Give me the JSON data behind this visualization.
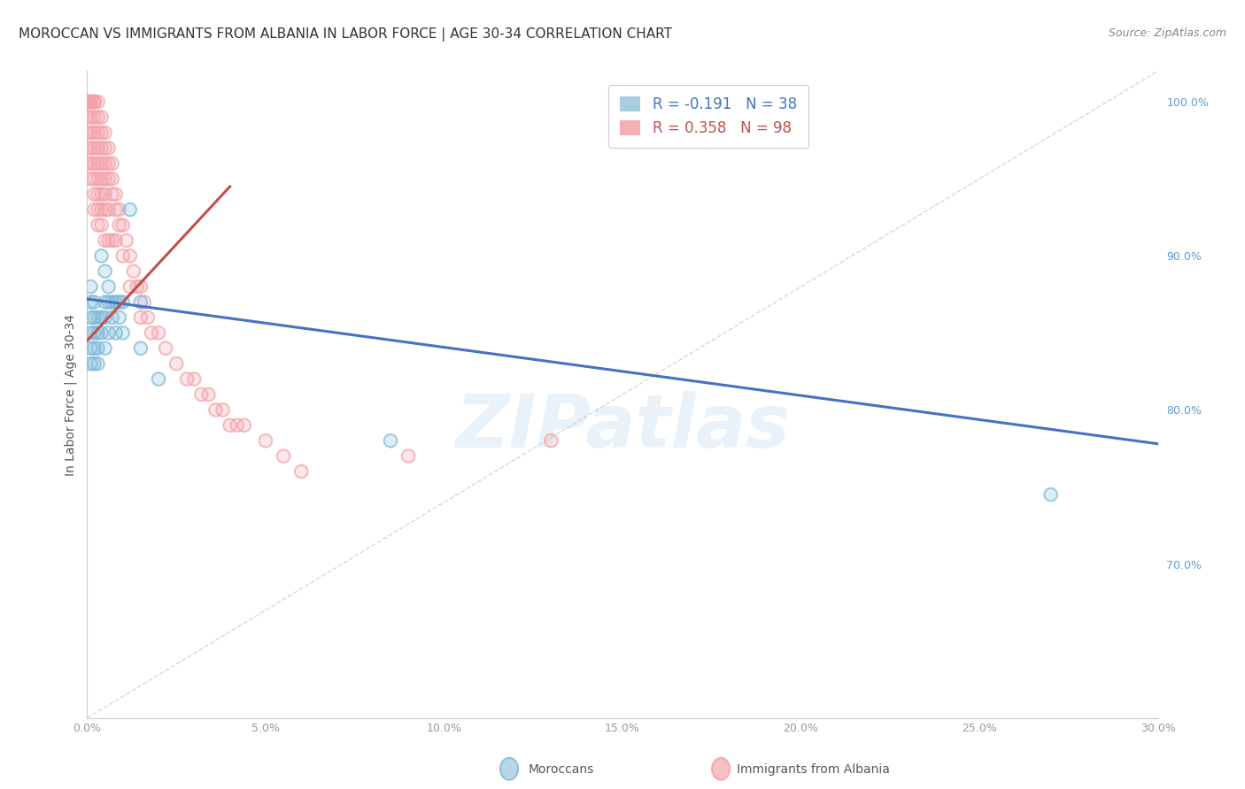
{
  "title": "MOROCCAN VS IMMIGRANTS FROM ALBANIA IN LABOR FORCE | AGE 30-34 CORRELATION CHART",
  "source": "Source: ZipAtlas.com",
  "ylabel": "In Labor Force | Age 30-34",
  "xlim": [
    0.0,
    0.3
  ],
  "ylim": [
    0.6,
    1.02
  ],
  "xtick_values": [
    0.0,
    0.05,
    0.1,
    0.15,
    0.2,
    0.25,
    0.3
  ],
  "ytick_values": [
    1.0,
    0.9,
    0.8,
    0.7
  ],
  "ytick_labels": [
    "100.0%",
    "90.0%",
    "80.0%",
    "70.0%"
  ],
  "moroccan_color": "#7ab8d9",
  "albania_color": "#f4a0a8",
  "moroccan_line_color": "#4472c4",
  "albania_line_color": "#c0504d",
  "diagonal_color": "#c8c8c8",
  "watermark": "ZIPatlas",
  "background_color": "#ffffff",
  "grid_color": "#d0d0d0",
  "moroccan_line_x0": 0.0,
  "moroccan_line_y0": 0.872,
  "moroccan_line_x1": 0.3,
  "moroccan_line_y1": 0.778,
  "albania_line_x0": 0.0,
  "albania_line_y0": 0.845,
  "albania_line_x1": 0.04,
  "albania_line_y1": 0.945,
  "moroccan_x": [
    0.001,
    0.001,
    0.001,
    0.001,
    0.001,
    0.001,
    0.002,
    0.002,
    0.002,
    0.002,
    0.002,
    0.003,
    0.003,
    0.003,
    0.003,
    0.004,
    0.004,
    0.004,
    0.005,
    0.005,
    0.005,
    0.005,
    0.006,
    0.006,
    0.006,
    0.007,
    0.007,
    0.008,
    0.008,
    0.009,
    0.009,
    0.01,
    0.01,
    0.012,
    0.015,
    0.015,
    0.02,
    0.085,
    0.27
  ],
  "moroccan_y": [
    0.88,
    0.87,
    0.86,
    0.85,
    0.84,
    0.83,
    0.87,
    0.86,
    0.85,
    0.84,
    0.83,
    0.86,
    0.85,
    0.84,
    0.83,
    0.9,
    0.86,
    0.85,
    0.89,
    0.87,
    0.86,
    0.84,
    0.88,
    0.87,
    0.85,
    0.87,
    0.86,
    0.87,
    0.85,
    0.87,
    0.86,
    0.87,
    0.85,
    0.93,
    0.87,
    0.84,
    0.82,
    0.78,
    0.745
  ],
  "albania_x": [
    0.0,
    0.0,
    0.0,
    0.0,
    0.0,
    0.0,
    0.0,
    0.0,
    0.0,
    0.0,
    0.001,
    0.001,
    0.001,
    0.001,
    0.001,
    0.001,
    0.001,
    0.001,
    0.001,
    0.001,
    0.002,
    0.002,
    0.002,
    0.002,
    0.002,
    0.002,
    0.002,
    0.002,
    0.002,
    0.002,
    0.003,
    0.003,
    0.003,
    0.003,
    0.003,
    0.003,
    0.003,
    0.003,
    0.003,
    0.004,
    0.004,
    0.004,
    0.004,
    0.004,
    0.004,
    0.004,
    0.004,
    0.005,
    0.005,
    0.005,
    0.005,
    0.005,
    0.005,
    0.005,
    0.006,
    0.006,
    0.006,
    0.006,
    0.006,
    0.007,
    0.007,
    0.007,
    0.007,
    0.008,
    0.008,
    0.008,
    0.009,
    0.009,
    0.01,
    0.01,
    0.011,
    0.012,
    0.012,
    0.013,
    0.014,
    0.015,
    0.015,
    0.016,
    0.017,
    0.018,
    0.02,
    0.022,
    0.025,
    0.028,
    0.03,
    0.032,
    0.034,
    0.036,
    0.038,
    0.04,
    0.042,
    0.044,
    0.05,
    0.055,
    0.06,
    0.09,
    0.13
  ],
  "albania_y": [
    1.0,
    1.0,
    1.0,
    1.0,
    1.0,
    1.0,
    0.99,
    0.98,
    0.97,
    0.96,
    1.0,
    1.0,
    1.0,
    1.0,
    1.0,
    0.99,
    0.98,
    0.97,
    0.96,
    0.95,
    1.0,
    1.0,
    1.0,
    0.99,
    0.98,
    0.97,
    0.96,
    0.95,
    0.94,
    0.93,
    1.0,
    0.99,
    0.98,
    0.97,
    0.96,
    0.95,
    0.94,
    0.93,
    0.92,
    0.99,
    0.98,
    0.97,
    0.96,
    0.95,
    0.94,
    0.93,
    0.92,
    0.98,
    0.97,
    0.96,
    0.95,
    0.94,
    0.93,
    0.91,
    0.97,
    0.96,
    0.95,
    0.93,
    0.91,
    0.96,
    0.95,
    0.94,
    0.91,
    0.94,
    0.93,
    0.91,
    0.93,
    0.92,
    0.92,
    0.9,
    0.91,
    0.9,
    0.88,
    0.89,
    0.88,
    0.88,
    0.86,
    0.87,
    0.86,
    0.85,
    0.85,
    0.84,
    0.83,
    0.82,
    0.82,
    0.81,
    0.81,
    0.8,
    0.8,
    0.79,
    0.79,
    0.79,
    0.78,
    0.77,
    0.76,
    0.77,
    0.78
  ]
}
